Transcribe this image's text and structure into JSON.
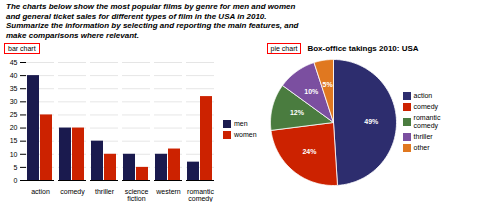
{
  "title": "The charts below show the most popular films by genre for men and women\nand general ticket sales for different types of film in the USA in 2010.\nSummarize the information by selecting and reporting the main features, and\nmake comparisons where relevant.",
  "chart_data": [
    {
      "type": "bar",
      "annotations": [
        "bar chart"
      ],
      "categories": [
        "action",
        "comedy",
        "thriller",
        "science\nfiction",
        "western",
        "romantic\ncomedy"
      ],
      "series": [
        {
          "name": "men",
          "color": "#1a1a4e",
          "values": [
            40,
            20,
            15,
            10,
            10,
            7
          ]
        },
        {
          "name": "women",
          "color": "#cc2200",
          "values": [
            25,
            20,
            10,
            5,
            12,
            32
          ]
        }
      ],
      "ylim": [
        0,
        45
      ],
      "yticks": [
        0,
        5,
        10,
        15,
        20,
        25,
        30,
        35,
        40,
        45
      ],
      "grid": true,
      "legend": "right"
    },
    {
      "type": "pie",
      "title": "Box-office takings 2010: USA",
      "annotations": [
        "pie chart"
      ],
      "categories": [
        "action",
        "comedy",
        "romantic\ncomedy",
        "thriller",
        "other"
      ],
      "values": [
        49,
        24,
        12,
        10,
        5
      ],
      "value_labels": [
        "49%",
        "24%",
        "12%",
        "10%",
        "5%"
      ],
      "colors": [
        "#2d2d6e",
        "#cc2200",
        "#4a7c3f",
        "#7b4fa0",
        "#e07820"
      ],
      "data_labels": true,
      "legend": "right"
    }
  ]
}
